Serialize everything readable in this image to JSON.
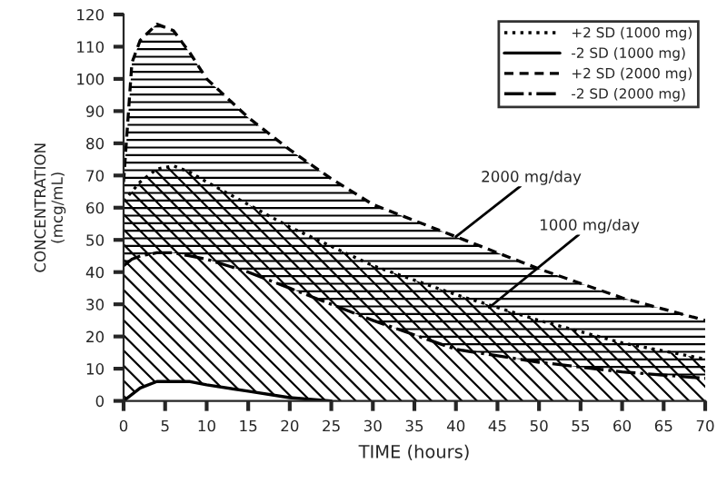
{
  "chart_data": {
    "type": "line",
    "xlabel": "TIME (hours)",
    "ylabel": "CONCENTRATION\n(mcg/mL)",
    "xlim": [
      0,
      70
    ],
    "ylim": [
      0,
      120
    ],
    "xticks": [
      0,
      5,
      10,
      15,
      20,
      25,
      30,
      35,
      40,
      45,
      50,
      55,
      60,
      65,
      70
    ],
    "yticks": [
      0,
      10,
      20,
      30,
      40,
      50,
      60,
      70,
      80,
      90,
      100,
      110,
      120
    ],
    "grid": false,
    "legend": "top right",
    "marker": "none",
    "series": [
      {
        "name": "+2 SD (1000 mg)",
        "color": "#000000",
        "line_style": "dotted",
        "x": [
          0,
          2,
          4,
          6,
          8,
          10,
          15,
          20,
          25,
          30,
          40,
          50,
          60,
          70
        ],
        "values": [
          62,
          68,
          72,
          73,
          71,
          68,
          61,
          54,
          48,
          42,
          33,
          25,
          18,
          13
        ],
        "lower": [
          0,
          4,
          6,
          6,
          6,
          5,
          3,
          1,
          0,
          0,
          0,
          0,
          0,
          0
        ],
        "upper": [
          62,
          68,
          72,
          73,
          71,
          68,
          61,
          54,
          48,
          42,
          33,
          25,
          18,
          13
        ]
      },
      {
        "name": "-2 SD (1000 mg)",
        "color": "#000000",
        "line_style": "solid",
        "x": [
          0,
          2,
          4,
          6,
          8,
          10,
          15,
          20,
          25
        ],
        "values": [
          0,
          4,
          6,
          6,
          6,
          5,
          3,
          1,
          0
        ]
      },
      {
        "name": "+2 SD (2000 mg)",
        "color": "#000000",
        "line_style": "dashed",
        "x": [
          0,
          1,
          2,
          4,
          6,
          8,
          10,
          15,
          20,
          25,
          30,
          40,
          50,
          60,
          70
        ],
        "values": [
          68,
          105,
          112,
          117,
          115,
          108,
          100,
          88,
          78,
          69,
          61,
          51,
          41,
          32,
          25
        ],
        "lower": [
          42,
          44,
          45,
          46,
          46,
          45,
          44,
          40,
          35,
          30,
          25,
          16,
          12,
          9,
          7
        ],
        "upper": [
          68,
          105,
          112,
          117,
          115,
          108,
          100,
          88,
          78,
          69,
          61,
          51,
          41,
          32,
          25
        ]
      },
      {
        "name": "-2 SD (2000 mg)",
        "color": "#000000",
        "line_style": "dashdot",
        "x": [
          0,
          1,
          2,
          4,
          6,
          8,
          10,
          15,
          20,
          25,
          30,
          40,
          50,
          60,
          70
        ],
        "values": [
          42,
          44,
          45,
          46,
          46,
          45,
          44,
          40,
          35,
          30,
          25,
          16,
          12,
          9,
          7
        ]
      }
    ],
    "annotations": [
      {
        "text": "2000 mg/day",
        "x": 40,
        "y": 51
      },
      {
        "text": "1000 mg/day",
        "x": 44,
        "y": 29
      }
    ]
  }
}
